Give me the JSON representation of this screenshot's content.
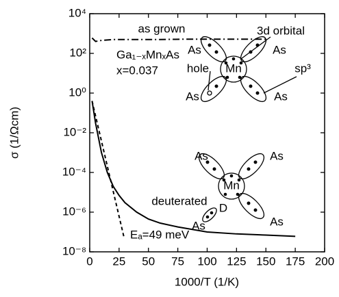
{
  "chart_data": {
    "type": "line",
    "y_scale": "log",
    "x_label": "1000/T  (1/K)",
    "y_label": "σ (1/Ωcm)",
    "xlim": [
      0,
      200
    ],
    "xticks": [
      0,
      25,
      50,
      75,
      100,
      125,
      150,
      175,
      200
    ],
    "ylim": [
      1e-08,
      10000
    ],
    "yticks": [
      {
        "value": 1e-08,
        "label": "10⁻⁸"
      },
      {
        "value": 1e-06,
        "label": "10⁻⁶"
      },
      {
        "value": 0.0001,
        "label": "10⁻⁴"
      },
      {
        "value": 0.01,
        "label": "10⁻²"
      },
      {
        "value": 1,
        "label": "10⁰"
      },
      {
        "value": 100,
        "label": "10²"
      },
      {
        "value": 10000,
        "label": "10⁴"
      }
    ],
    "series": [
      {
        "name": "as grown",
        "color": "#000",
        "dash": "10,4,2,4",
        "x": [
          2,
          5,
          10,
          20,
          40,
          60,
          80,
          100,
          120,
          140,
          150
        ],
        "values": [
          600,
          400,
          450,
          500,
          500,
          500,
          520,
          520,
          520,
          520,
          520
        ]
      },
      {
        "name": "deuterated",
        "color": "#000",
        "dash": "none",
        "x": [
          2,
          5,
          10,
          15,
          20,
          25,
          30,
          40,
          50,
          60,
          75,
          100,
          125,
          150,
          175
        ],
        "values": [
          0.4,
          0.03,
          0.001,
          0.0001,
          2e-05,
          7e-06,
          3e-06,
          1e-06,
          4.5e-07,
          2.8e-07,
          1.8e-07,
          1e-07,
          8e-08,
          7e-08,
          6e-08
        ]
      },
      {
        "color": "#000",
        "dash": "5,4",
        "x": [
          2,
          29
        ],
        "values": [
          0.4,
          6e-08
        ]
      }
    ],
    "annotations": [
      "Ga₁₋ₓMnₓAs",
      "x=0.037",
      "Eₐ=49 meV"
    ]
  },
  "diagrams": {
    "top": {
      "center": "Mn",
      "ligands": [
        "As",
        "As",
        "As",
        "As"
      ],
      "labels": [
        "3d orbital",
        "hole",
        "sp³"
      ]
    },
    "bottom": {
      "center": "Mn",
      "ligands": [
        "As",
        "As",
        "As",
        "As"
      ],
      "labels": [
        "D"
      ]
    }
  }
}
